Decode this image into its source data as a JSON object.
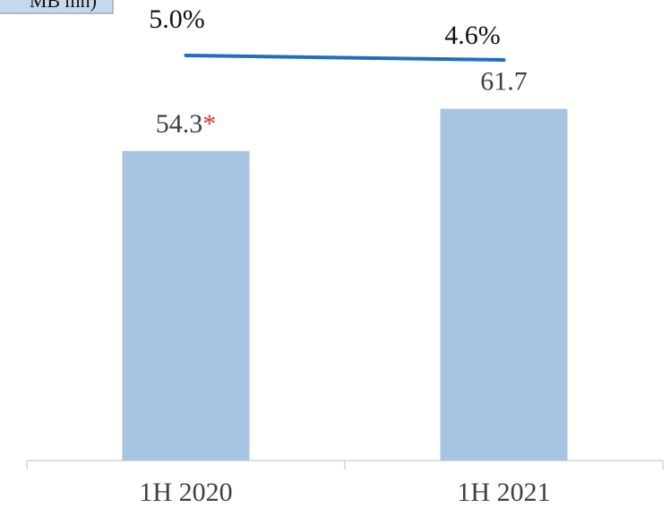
{
  "chart_data": {
    "type": "bar",
    "unit_label": "MB mn)",
    "categories": [
      "1H 2020",
      "1H 2021"
    ],
    "series": [
      {
        "values": [
          54.3,
          61.7
        ],
        "color": "#a7c5e2"
      },
      {
        "values": [
          5.0,
          4.6
        ],
        "value_labels": [
          "5.0%",
          "4.6%"
        ],
        "color": "#1f6fbf",
        "type": "line",
        "axis": "y2"
      }
    ],
    "annotation": "*",
    "annotation_color": "#e03030",
    "ylim": [
      0,
      80
    ],
    "y2lim": [
      4,
      6
    ]
  }
}
